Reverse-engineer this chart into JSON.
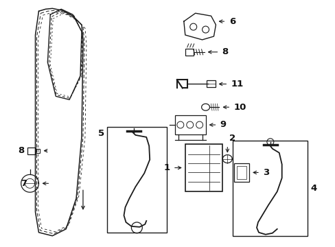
{
  "background": "#ffffff",
  "line_color": "#1a1a1a",
  "text_color": "#111111",
  "figsize": [
    4.89,
    3.6
  ],
  "dpi": 100
}
